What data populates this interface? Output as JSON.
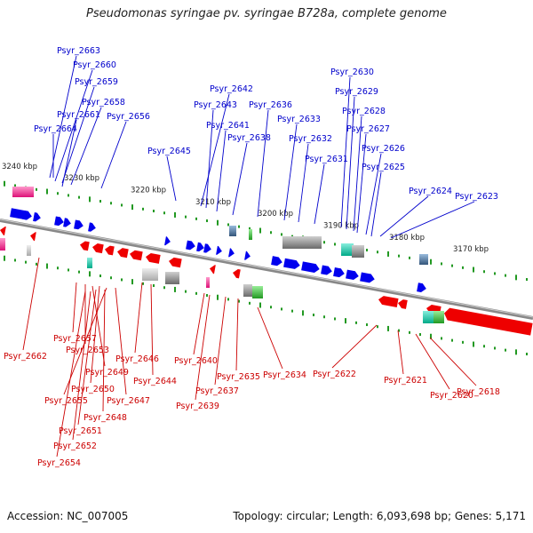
{
  "title": "Pseudomonas syringae pv. syringae B728a, complete genome",
  "accession": "Accession: NC_007005",
  "topology": "Topology: circular; Length: 6,093,698 bp; Genes: 5,171",
  "colors": {
    "forward_gene": "#0000ee",
    "reverse_gene": "#ee0000",
    "backbone": "#888888",
    "tick": "#229922",
    "forward_label": "#0000cc",
    "reverse_label": "#cc0000"
  },
  "scale": {
    "labels": [
      "3240 kbp",
      "3230 kbp",
      "3220 kbp",
      "3210 kbp",
      "3200 kbp",
      "3190 kbp",
      "3180 kbp",
      "3170 kbp"
    ]
  },
  "forward_genes": [
    "Psyr_2663",
    "Psyr_2660",
    "Psyr_2659",
    "Psyr_2658",
    "Psyr_2661",
    "Psyr_2656",
    "Psyr_2664",
    "Psyr_2645",
    "Psyr_2642",
    "Psyr_2643",
    "Psyr_2641",
    "Psyr_2636",
    "Psyr_2638",
    "Psyr_2633",
    "Psyr_2632",
    "Psyr_2631",
    "Psyr_2630",
    "Psyr_2629",
    "Psyr_2628",
    "Psyr_2627",
    "Psyr_2626",
    "Psyr_2625",
    "Psyr_2624",
    "Psyr_2623"
  ],
  "reverse_genes": [
    "Psyr_2662",
    "Psyr_2657",
    "Psyr_2653",
    "Psyr_2649",
    "Psyr_2646",
    "Psyr_2644",
    "Psyr_2650",
    "Psyr_2655",
    "Psyr_2647",
    "Psyr_2648",
    "Psyr_2651",
    "Psyr_2652",
    "Psyr_2654",
    "Psyr_2640",
    "Psyr_2639",
    "Psyr_2637",
    "Psyr_2635",
    "Psyr_2634",
    "Psyr_2622",
    "Psyr_2621",
    "Psyr_2620",
    "Psyr_2618"
  ]
}
